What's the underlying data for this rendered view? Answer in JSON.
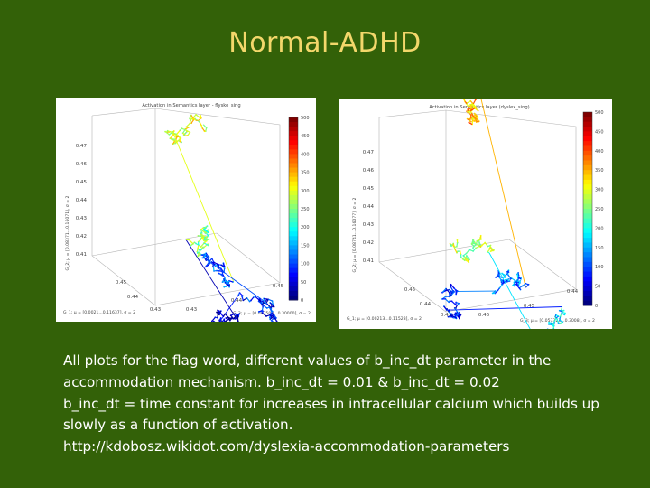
{
  "slide": {
    "title": "Normal-ADHD",
    "caption_lines": [
      "All plots for the flag word, different values of b_inc_dt parameter in the",
      "accommodation mechanism. b_inc_dt = 0.01 & b_inc_dt = 0.02",
      "b_inc_dt = time constant for increases in intracellular calcium which builds up",
      "slowly as a function of activation.",
      "http://kdobosz.wikidot.com/dyslexia-accommodation-parameters"
    ]
  },
  "figures": [
    {
      "title": "Activation in Semantics layer - flyske_sing",
      "z_ticks": [
        "0.47",
        "0.46",
        "0.45",
        "0.44",
        "0.43",
        "0.42",
        "0.41"
      ],
      "z_label": "G_2; μ = [0.08371...0.16071], σ = 2",
      "x_ticks": [
        "0.45",
        "0.44",
        "0.43"
      ],
      "x_label": "G_1; μ = [0.0021...0.11637], σ = 2",
      "y_ticks": [
        "0.43",
        "0.44",
        "0.45"
      ],
      "y_label": "G_3; μ = [0.007503...0.30000], σ = 2",
      "colorbar_ticks": [
        "500",
        "450",
        "400",
        "350",
        "300",
        "250",
        "200",
        "150",
        "100",
        "50",
        "0"
      ]
    },
    {
      "title": "Activation in Semantics layer (dyslex_sing)",
      "z_ticks": [
        "0.47",
        "0.46",
        "0.45",
        "0.44",
        "0.43",
        "0.42",
        "0.41"
      ],
      "z_label": "G_2; μ = [0.08741...0.16077], σ = 2",
      "x_ticks": [
        "0.45",
        "0.44",
        "0.43"
      ],
      "x_label": "G_1; μ = [0.00213...0.11523], σ = 2",
      "y_ticks": [
        "0.46",
        "0.45",
        "0.44"
      ],
      "y_label": "G_3; μ = [0.057323...0.3008], σ = 2",
      "colorbar_ticks": [
        "500",
        "450",
        "400",
        "350",
        "300",
        "250",
        "200",
        "150",
        "100",
        "50",
        "0"
      ]
    }
  ],
  "colors": {
    "background": "#336108",
    "title": "#f3d76b",
    "caption": "#ffffff"
  }
}
